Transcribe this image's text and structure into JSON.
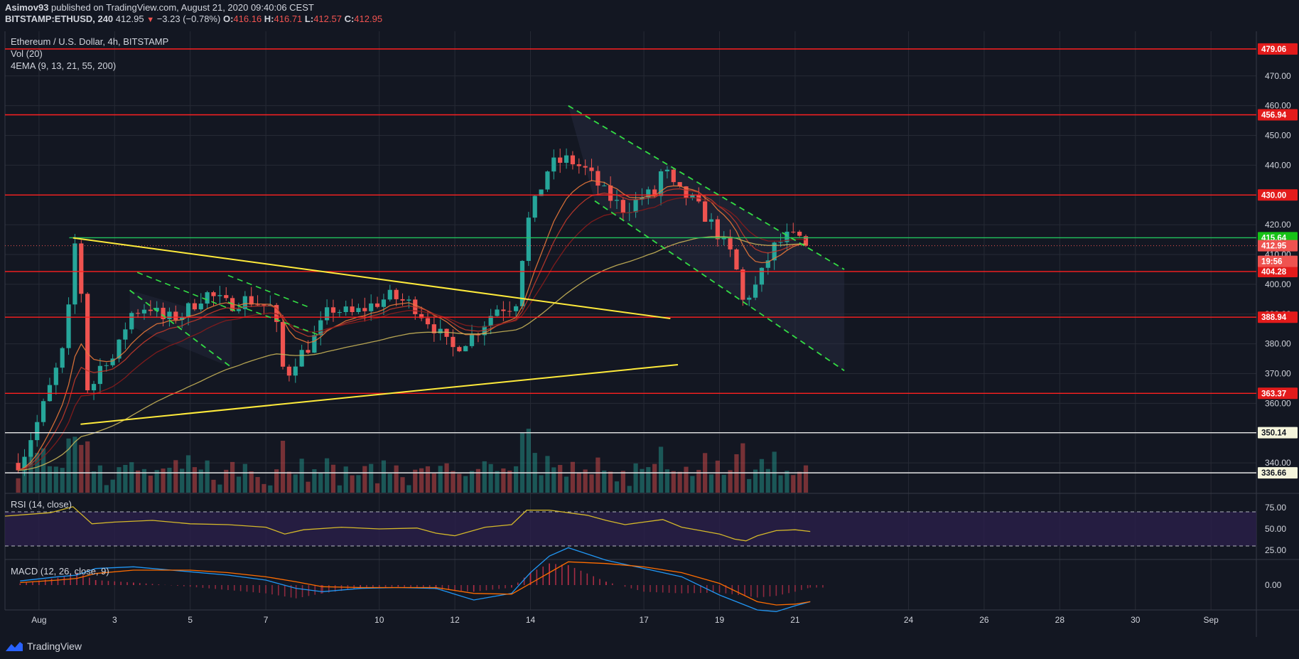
{
  "header": {
    "user": "Asimov93",
    "published": "published on TradingView.com, August 21, 2020 09:40:06 CEST",
    "symbol": "BITSTAMP:ETHUSD, 240",
    "last": "412.95",
    "change": "−3.23 (−0.78%)",
    "o_label": "O:",
    "o": "416.16",
    "h_label": "H:",
    "h": "416.71",
    "l_label": "L:",
    "l": "412.57",
    "c_label": "C:",
    "c": "412.95"
  },
  "legend": {
    "title": "Ethereum / U.S. Dollar, 4h, BITSTAMP",
    "vol": "Vol (20)",
    "ema": "4EMA (9, 13, 21, 55, 200)",
    "rsi": "RSI (14, close)",
    "macd": "MACD (12, 26, close, 9)"
  },
  "footer": {
    "brand": "TradingView"
  },
  "colors": {
    "bg": "#131722",
    "grid": "#262a35",
    "up": "#26a69a",
    "down": "#ef5350",
    "level": "#ff2020",
    "support_green": "#22c55e",
    "trend_yellow": "#ffeb3b",
    "channel_green": "#4caf50"
  },
  "chart_data": [
    {
      "type": "candlestick",
      "title": "Ethereum / U.S. Dollar, 4h, BITSTAMP",
      "ylim": [
        330,
        485
      ],
      "y_ticks": [
        "340.00",
        "350.00",
        "360.00",
        "370.00",
        "380.00",
        "390.00",
        "400.00",
        "410.00",
        "420.00",
        "430.00",
        "440.00",
        "450.00",
        "460.00",
        "470.00"
      ],
      "x_ticks": [
        "Aug",
        "3",
        "5",
        "7",
        "10",
        "12",
        "14",
        "17",
        "19",
        "21",
        "24",
        "26",
        "28",
        "30",
        "Sep"
      ],
      "x_tick_days": [
        1,
        3,
        5,
        7,
        10,
        12,
        14,
        17,
        19,
        21,
        24,
        26,
        28,
        30,
        32
      ],
      "x_range_days": [
        0.1,
        33.2
      ],
      "last_day": 21.4,
      "ohlc_anchors": [
        [
          0.5,
          340
        ],
        [
          1.0,
          355
        ],
        [
          1.7,
          380
        ],
        [
          2.0,
          420
        ],
        [
          2.3,
          362
        ],
        [
          2.7,
          375
        ],
        [
          3.0,
          375
        ],
        [
          3.4,
          390
        ],
        [
          3.9,
          393
        ],
        [
          4.3,
          388
        ],
        [
          4.8,
          390
        ],
        [
          5.4,
          397
        ],
        [
          6.0,
          393
        ],
        [
          6.5,
          395
        ],
        [
          7.2,
          392
        ],
        [
          7.5,
          368
        ],
        [
          7.8,
          375
        ],
        [
          8.2,
          380
        ],
        [
          8.7,
          392
        ],
        [
          9.3,
          390
        ],
        [
          9.8,
          393
        ],
        [
          10.3,
          396
        ],
        [
          10.9,
          393
        ],
        [
          11.5,
          385
        ],
        [
          11.9,
          378
        ],
        [
          12.5,
          383
        ],
        [
          13.1,
          392
        ],
        [
          13.6,
          393
        ],
        [
          13.9,
          420
        ],
        [
          14.5,
          440
        ],
        [
          15.0,
          442
        ],
        [
          15.5,
          438
        ],
        [
          16.0,
          430
        ],
        [
          16.5,
          425
        ],
        [
          17.0,
          430
        ],
        [
          17.3,
          430
        ],
        [
          17.5,
          440
        ],
        [
          17.8,
          432
        ],
        [
          18.3,
          428
        ],
        [
          18.8,
          420
        ],
        [
          19.4,
          408
        ],
        [
          19.6,
          394
        ],
        [
          20.0,
          400
        ],
        [
          20.4,
          412
        ],
        [
          20.8,
          416
        ],
        [
          21.2,
          415
        ],
        [
          21.4,
          413
        ]
      ],
      "levels": [
        {
          "value": 479.06,
          "label": "479.06",
          "kind": "red"
        },
        {
          "value": 456.94,
          "label": "456.94",
          "kind": "red"
        },
        {
          "value": 430.0,
          "label": "430.00",
          "kind": "red"
        },
        {
          "value": 415.64,
          "label": "415.64",
          "kind": "green"
        },
        {
          "value": 404.28,
          "label": "404.28",
          "kind": "red"
        },
        {
          "value": 388.94,
          "label": "388.94",
          "kind": "red"
        },
        {
          "value": 363.37,
          "label": "363.37",
          "kind": "red"
        },
        {
          "value": 350.14,
          "label": "350.14",
          "kind": "white"
        },
        {
          "value": 336.66,
          "label": "336.66",
          "kind": "white"
        }
      ],
      "last_price": {
        "value": 412.95,
        "label": "412.95",
        "countdown": "19:56"
      },
      "trend_lines": [
        {
          "from": [
            1.9,
            415.6
          ],
          "to": [
            17.7,
            388.5
          ]
        },
        {
          "from": [
            2.1,
            353.0
          ],
          "to": [
            17.9,
            373.0
          ]
        }
      ],
      "channel_lines": [
        {
          "from": [
            15.0,
            460
          ],
          "to": [
            22.3,
            405
          ]
        },
        {
          "from": [
            15.7,
            428
          ],
          "to": [
            22.3,
            371
          ]
        },
        {
          "from": [
            3.4,
            398
          ],
          "to": [
            6.1,
            372
          ]
        }
      ],
      "support_line": {
        "from": [
          1.8,
          415.64
        ],
        "to": [
          33.2,
          415.64
        ]
      }
    },
    {
      "type": "line",
      "title": "RSI (14, close)",
      "ylim": [
        15,
        90
      ],
      "y_ticks": [
        "75.00",
        "50.00",
        "25.00"
      ],
      "bands": [
        70,
        30
      ],
      "x": [
        0.1,
        1.3,
        1.9,
        2.2,
        2.4,
        3.0,
        4.0,
        5.0,
        6.0,
        7.0,
        7.5,
        8.0,
        9.0,
        10.0,
        11.0,
        11.5,
        12.0,
        12.8,
        13.5,
        13.9,
        14.5,
        15.5,
        16.0,
        16.5,
        17.0,
        17.5,
        18.0,
        18.5,
        19.0,
        19.4,
        19.7,
        20.0,
        20.5,
        21.0,
        21.4
      ],
      "values": [
        65,
        69,
        76,
        64,
        56,
        58,
        60,
        56,
        55,
        52,
        44,
        49,
        52,
        50,
        51,
        45,
        42,
        52,
        55,
        72,
        72,
        66,
        60,
        55,
        58,
        61,
        52,
        48,
        44,
        38,
        36,
        42,
        48,
        49,
        47
      ]
    },
    {
      "type": "histogram",
      "title": "MACD (12, 26, close, 9)",
      "ylim": [
        -3,
        3
      ],
      "y_ticks": [
        "0.00"
      ],
      "x": [
        0.5,
        1.5,
        2.0,
        2.5,
        3.5,
        5.0,
        6.0,
        7.0,
        7.8,
        8.5,
        9.5,
        10.5,
        11.5,
        12.5,
        13.5,
        14.0,
        14.5,
        15.0,
        16.0,
        17.0,
        18.0,
        19.0,
        20.0,
        20.5,
        21.0,
        21.4
      ],
      "values": [
        0.2,
        0.9,
        1.5,
        0.6,
        0.3,
        -0.2,
        -0.6,
        -1.0,
        -1.6,
        -1.0,
        -0.4,
        -0.2,
        -0.5,
        -0.8,
        -0.3,
        1.5,
        2.6,
        2.4,
        0.4,
        -0.8,
        -1.0,
        -0.9,
        -1.5,
        -1.3,
        -0.8,
        -0.3
      ],
      "macd_line": [
        0.5,
        1.0,
        1.2,
        2.0,
        2.2,
        1.6,
        1.2,
        0.6,
        -0.4,
        -0.8,
        -0.4,
        -0.3,
        -0.4,
        -1.8,
        -1.0,
        1.5,
        3.5,
        4.5,
        3.0,
        2.0,
        1.0,
        -1.2,
        -3.0,
        -3.2,
        -2.5,
        -2.0
      ],
      "signal_line": [
        0.3,
        0.6,
        0.8,
        1.4,
        1.8,
        1.8,
        1.5,
        1.0,
        0.4,
        -0.2,
        -0.3,
        -0.3,
        -0.3,
        -1.0,
        -1.1,
        0.2,
        1.5,
        2.8,
        2.6,
        2.2,
        1.5,
        0.2,
        -2.0,
        -2.4,
        -2.3,
        -2.0
      ]
    }
  ]
}
